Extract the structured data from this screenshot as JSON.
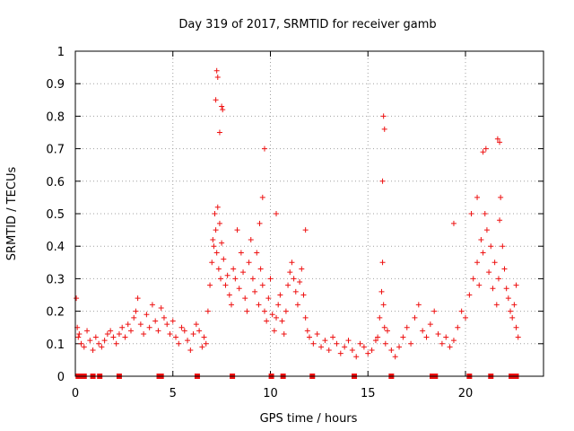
{
  "chart_data": {
    "type": "scatter",
    "title": "Day 319 of 2017, SRMTID for receiver gamb",
    "xlabel": "GPS time / hours",
    "ylabel": "SRMTID / TECUs",
    "xlim": [
      0,
      24
    ],
    "ylim": [
      0,
      1
    ],
    "xticks": [
      0,
      5,
      10,
      15,
      20
    ],
    "xtick_labels": [
      "0",
      "5",
      "10",
      "15",
      "20"
    ],
    "yticks": [
      0,
      0.1,
      0.2,
      0.3,
      0.4,
      0.5,
      0.6,
      0.7,
      0.8,
      0.9,
      1
    ],
    "ytick_labels": [
      "0",
      "0.1",
      "0.2",
      "0.3",
      "0.4",
      "0.5",
      "0.6",
      "0.7",
      "0.8",
      "0.9",
      "1"
    ],
    "grid": true,
    "marker": "+",
    "color": "#ee1111",
    "series": [
      {
        "name": "SRMTID",
        "x": [
          0.05,
          0.1,
          0.15,
          0.2,
          0.3,
          0.45,
          0.6,
          0.75,
          0.9,
          1.05,
          1.2,
          1.35,
          1.5,
          1.65,
          1.8,
          1.95,
          2.1,
          2.25,
          2.4,
          2.55,
          2.7,
          2.85,
          3.0,
          3.1,
          3.2,
          3.35,
          3.5,
          3.65,
          3.8,
          3.95,
          4.1,
          4.25,
          4.4,
          4.55,
          4.7,
          4.85,
          5.0,
          5.15,
          5.3,
          5.45,
          5.6,
          5.75,
          5.9,
          6.05,
          6.2,
          6.35,
          6.5,
          6.6,
          6.7,
          6.8,
          6.9,
          7.0,
          7.05,
          7.1,
          7.15,
          7.2,
          7.25,
          7.3,
          7.35,
          7.4,
          7.45,
          7.5,
          7.6,
          7.7,
          7.8,
          7.9,
          8.0,
          8.1,
          8.2,
          8.3,
          8.4,
          8.5,
          8.6,
          8.7,
          8.8,
          8.9,
          9.0,
          9.1,
          9.2,
          9.3,
          9.4,
          9.5,
          9.6,
          9.7,
          9.8,
          9.9,
          10.0,
          10.1,
          10.2,
          10.3,
          10.4,
          10.5,
          10.6,
          10.7,
          10.8,
          10.9,
          11.0,
          11.1,
          11.2,
          11.3,
          11.4,
          11.5,
          11.6,
          11.7,
          11.8,
          11.9,
          12.0,
          12.2,
          12.4,
          12.6,
          12.8,
          13.0,
          13.2,
          13.4,
          13.6,
          13.8,
          14.0,
          14.2,
          14.4,
          14.6,
          14.8,
          15.0,
          15.2,
          15.4,
          15.5,
          15.6,
          15.7,
          15.75,
          15.8,
          15.85,
          15.9,
          16.0,
          16.2,
          16.4,
          16.6,
          16.8,
          17.0,
          17.2,
          17.4,
          17.6,
          17.8,
          18.0,
          18.2,
          18.4,
          18.6,
          18.8,
          19.0,
          19.2,
          19.4,
          19.6,
          19.8,
          20.0,
          20.2,
          20.4,
          20.6,
          20.7,
          20.8,
          20.9,
          21.0,
          21.1,
          21.2,
          21.3,
          21.4,
          21.5,
          21.6,
          21.7,
          21.75,
          21.8,
          21.9,
          22.0,
          22.1,
          22.2,
          22.3,
          22.4,
          22.5,
          22.6,
          22.7,
          7.25,
          7.3,
          7.5,
          7.55,
          9.7,
          15.8,
          15.85,
          21.65,
          21.75,
          20.9,
          21.05,
          7.2,
          7.4,
          9.45,
          9.6,
          10.3,
          11.8,
          15.75,
          19.4,
          20.3,
          20.6,
          22.6
        ],
        "y": [
          0.24,
          0.15,
          0.12,
          0.13,
          0.1,
          0.09,
          0.14,
          0.11,
          0.08,
          0.12,
          0.1,
          0.09,
          0.11,
          0.13,
          0.14,
          0.12,
          0.1,
          0.13,
          0.15,
          0.12,
          0.16,
          0.14,
          0.18,
          0.2,
          0.24,
          0.16,
          0.13,
          0.19,
          0.15,
          0.22,
          0.17,
          0.14,
          0.21,
          0.18,
          0.16,
          0.13,
          0.17,
          0.12,
          0.1,
          0.15,
          0.14,
          0.11,
          0.08,
          0.13,
          0.16,
          0.14,
          0.09,
          0.12,
          0.1,
          0.2,
          0.28,
          0.35,
          0.42,
          0.4,
          0.5,
          0.45,
          0.38,
          0.52,
          0.33,
          0.47,
          0.3,
          0.41,
          0.36,
          0.28,
          0.31,
          0.25,
          0.22,
          0.33,
          0.3,
          0.45,
          0.27,
          0.38,
          0.32,
          0.24,
          0.2,
          0.35,
          0.42,
          0.3,
          0.26,
          0.38,
          0.22,
          0.33,
          0.28,
          0.2,
          0.17,
          0.24,
          0.3,
          0.19,
          0.14,
          0.18,
          0.22,
          0.25,
          0.17,
          0.13,
          0.2,
          0.28,
          0.32,
          0.35,
          0.3,
          0.26,
          0.22,
          0.29,
          0.33,
          0.25,
          0.18,
          0.14,
          0.12,
          0.1,
          0.13,
          0.09,
          0.11,
          0.08,
          0.12,
          0.1,
          0.07,
          0.09,
          0.11,
          0.08,
          0.06,
          0.1,
          0.09,
          0.07,
          0.08,
          0.11,
          0.12,
          0.18,
          0.26,
          0.35,
          0.22,
          0.15,
          0.1,
          0.14,
          0.08,
          0.06,
          0.09,
          0.12,
          0.15,
          0.1,
          0.18,
          0.22,
          0.14,
          0.12,
          0.16,
          0.2,
          0.13,
          0.1,
          0.12,
          0.09,
          0.11,
          0.15,
          0.2,
          0.18,
          0.25,
          0.3,
          0.35,
          0.28,
          0.42,
          0.38,
          0.5,
          0.45,
          0.32,
          0.4,
          0.27,
          0.35,
          0.22,
          0.3,
          0.48,
          0.55,
          0.4,
          0.33,
          0.27,
          0.24,
          0.2,
          0.18,
          0.22,
          0.15,
          0.12,
          0.94,
          0.92,
          0.83,
          0.82,
          0.7,
          0.8,
          0.76,
          0.73,
          0.72,
          0.69,
          0.7,
          0.85,
          0.75,
          0.47,
          0.55,
          0.5,
          0.45,
          0.6,
          0.47,
          0.5,
          0.55,
          0.28
        ]
      }
    ],
    "zero_markers_x": [
      0.15,
      0.3,
      0.45,
      0.9,
      1.25,
      2.25,
      4.3,
      4.4,
      6.25,
      8.05,
      10.05,
      10.65,
      12.15,
      14.3,
      16.2,
      18.3,
      18.45,
      20.2,
      21.3,
      22.35,
      22.6
    ]
  }
}
